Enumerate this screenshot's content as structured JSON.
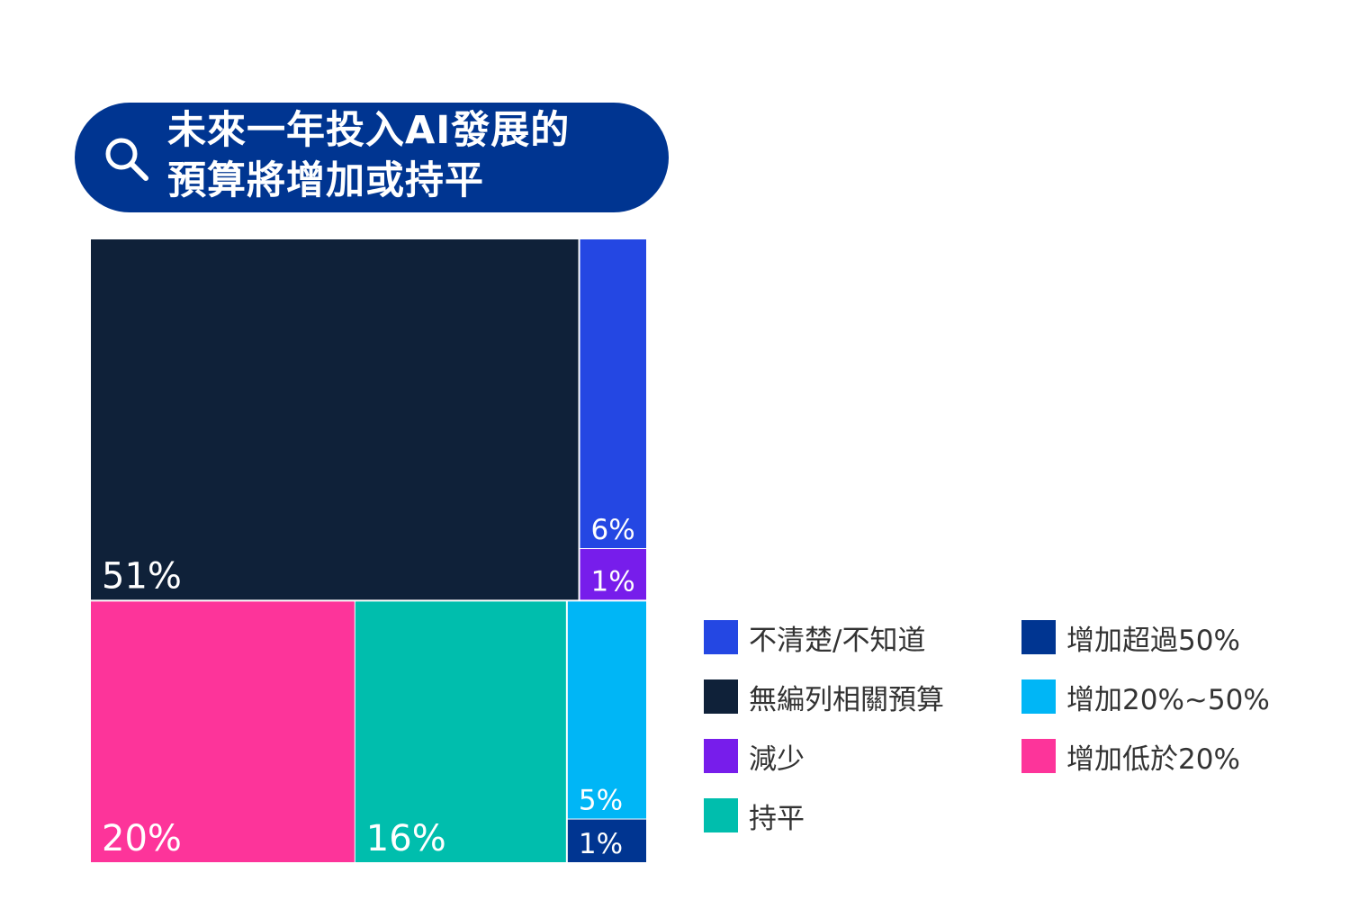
{
  "title": "未來一年投入AI發展的\n預算將增加或持平",
  "icons": {
    "search": "search-icon"
  },
  "chart_data": {
    "type": "treemap",
    "title": "未來一年投入AI發展的預算將增加或持平",
    "unit": "%",
    "groups": [
      {
        "name": "top",
        "items": [
          {
            "name": "無編列相關預算",
            "value": 51,
            "label": "51%",
            "color": "#0f2139"
          },
          {
            "name": "不清楚/不知道",
            "value": 6,
            "label": "6%",
            "color": "#2447e3"
          },
          {
            "name": "減少",
            "value": 1,
            "label": "1%",
            "color": "#771deb"
          }
        ]
      },
      {
        "name": "bottom",
        "items": [
          {
            "name": "增加低於20%",
            "value": 20,
            "label": "20%",
            "color": "#fd349a"
          },
          {
            "name": "持平",
            "value": 16,
            "label": "16%",
            "color": "#00bead"
          },
          {
            "name": "增加20%~50%",
            "value": 5,
            "label": "5%",
            "color": "#00b6f6"
          },
          {
            "name": "增加超過50%",
            "value": 1,
            "label": "1%",
            "color": "#003591"
          }
        ]
      }
    ],
    "legend": [
      {
        "label": "不清楚/不知道",
        "color": "#2447e3"
      },
      {
        "label": "無編列相關預算",
        "color": "#0f2139"
      },
      {
        "label": "減少",
        "color": "#771deb"
      },
      {
        "label": "持平",
        "color": "#00bead"
      },
      {
        "label": "增加超過50%",
        "color": "#003591"
      },
      {
        "label": "增加20%~50%",
        "color": "#00b6f6"
      },
      {
        "label": "增加低於20%",
        "color": "#fd349a"
      }
    ],
    "legend_position": "right"
  }
}
